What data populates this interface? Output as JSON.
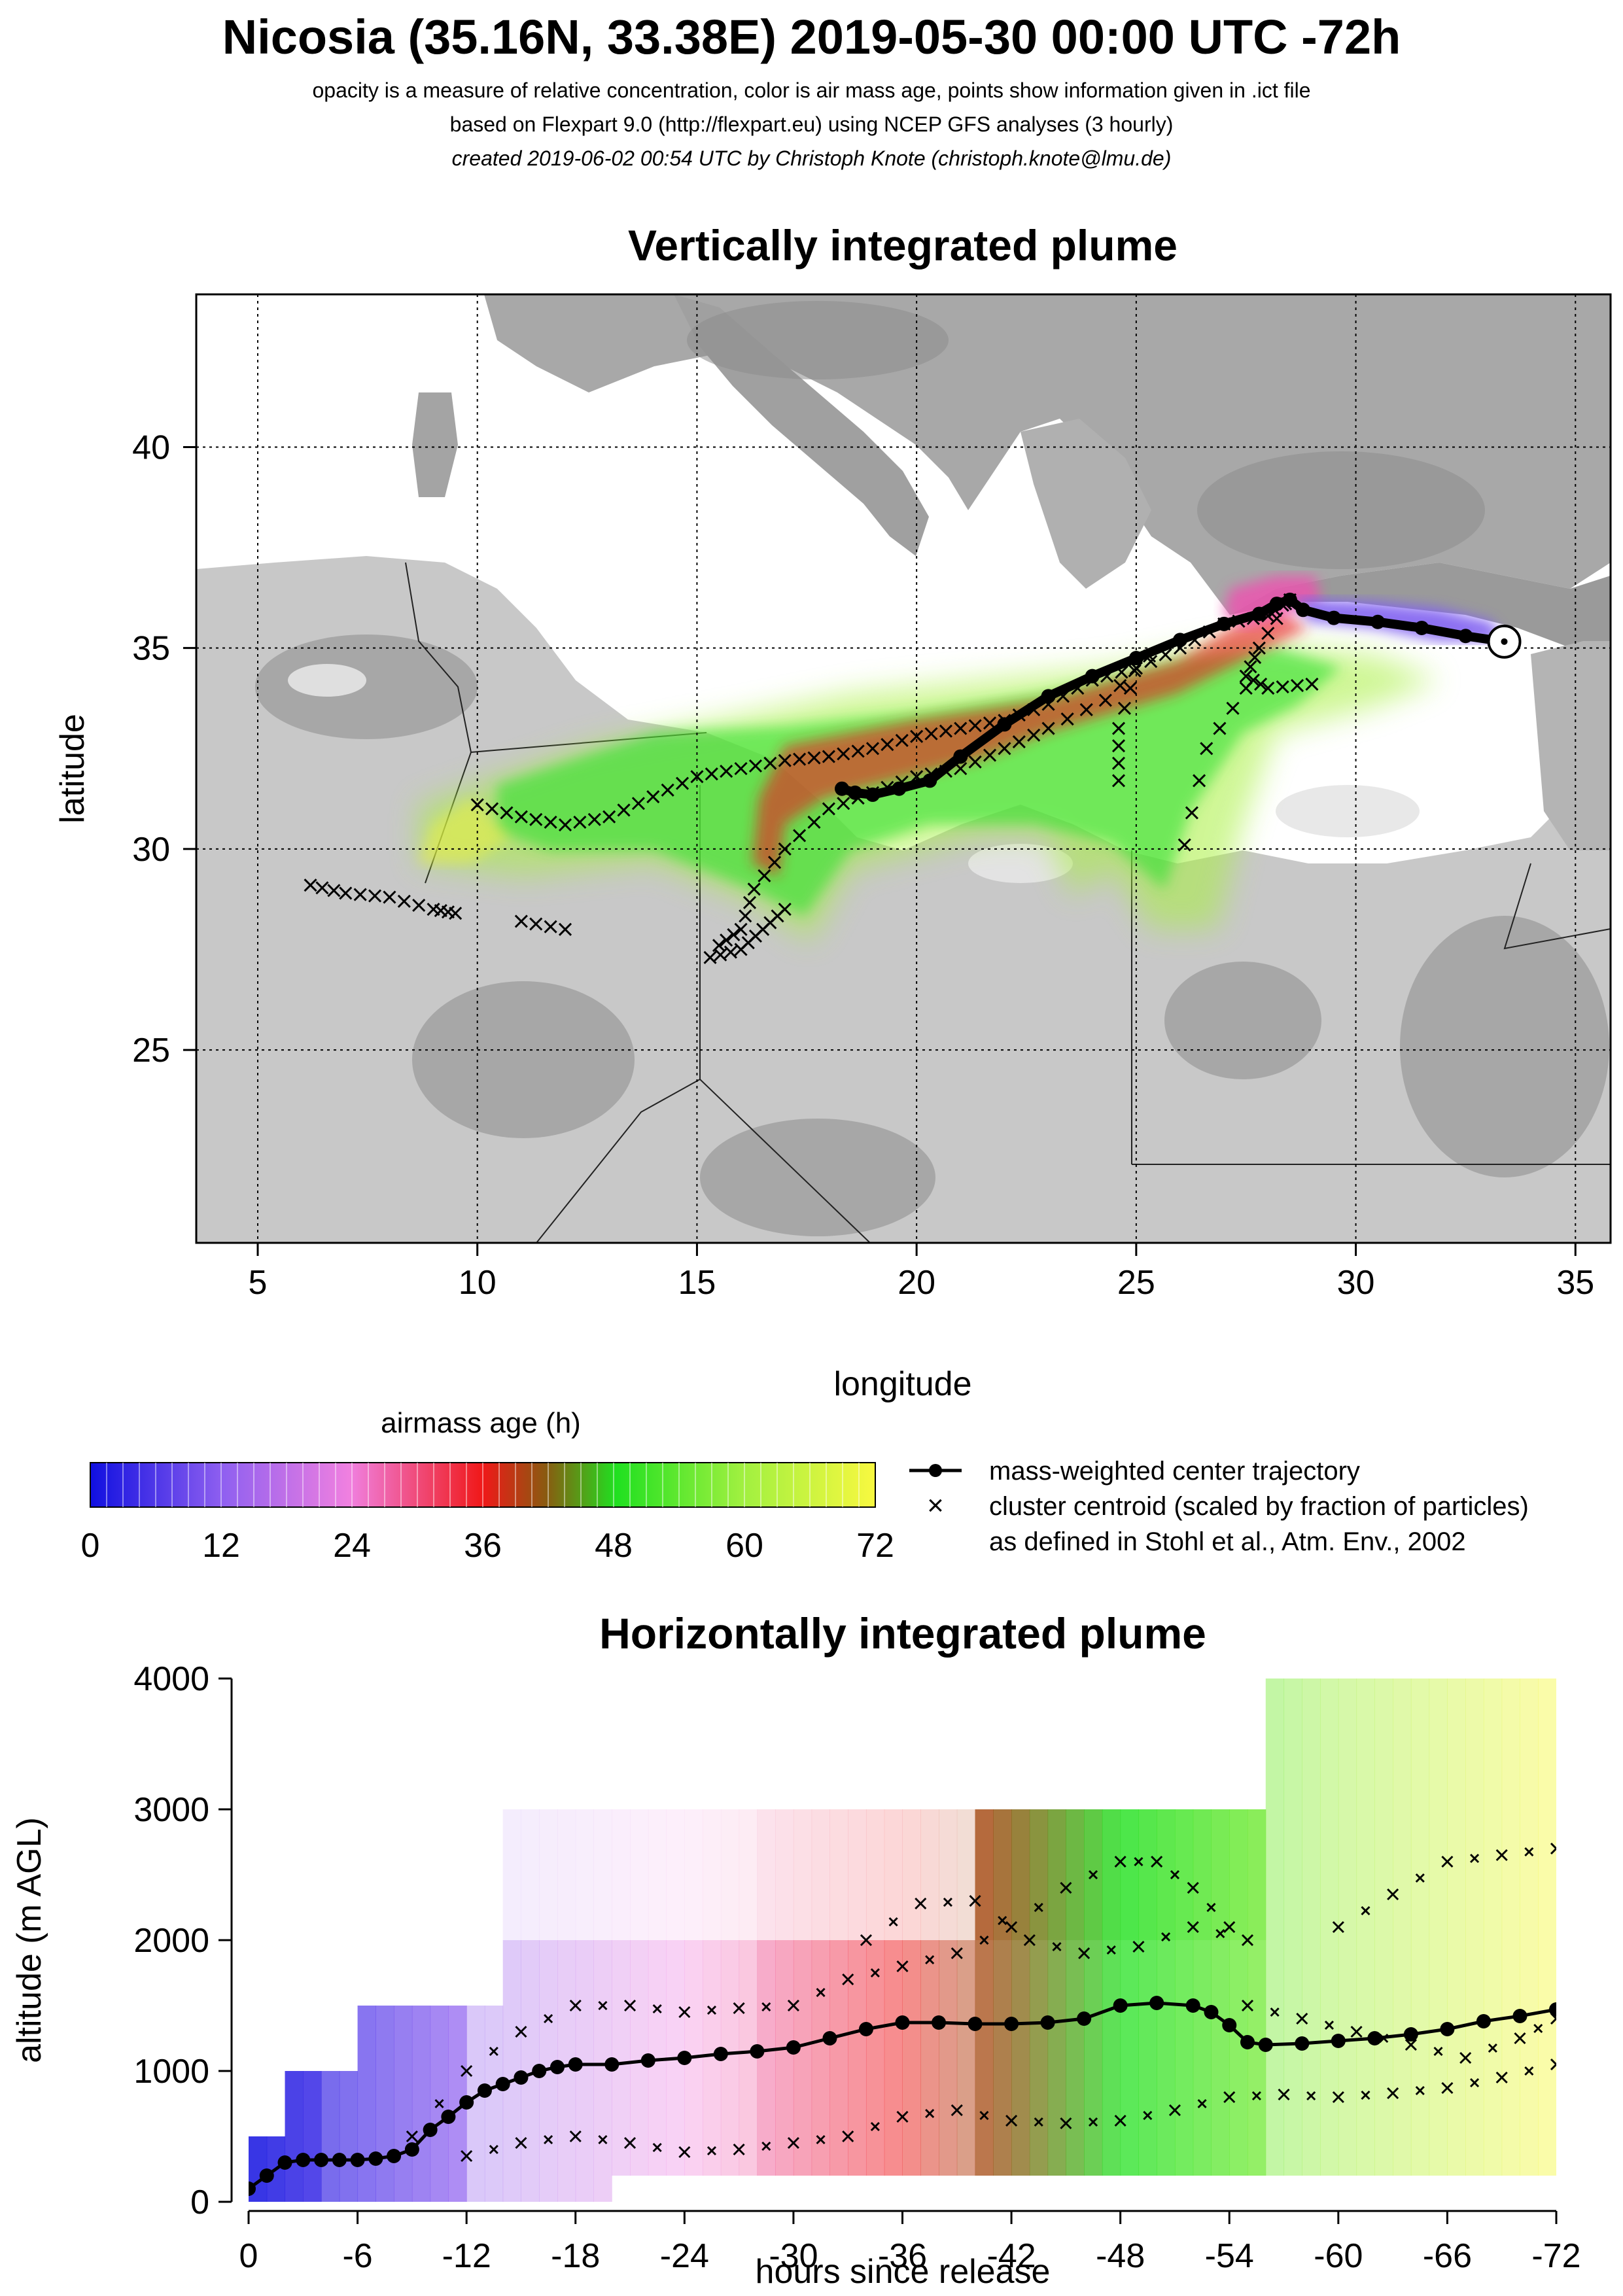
{
  "header": {
    "title": "Nicosia (35.16N, 33.38E) 2019-05-30 00:00 UTC -72h",
    "line1": "opacity is a measure of relative concentration, color is air mass age, points show information given in .ict file",
    "line2": "based on Flexpart 9.0 (http://flexpart.eu) using NCEP GFS analyses (3 hourly)",
    "line3": "created 2019-06-02 00:54 UTC by Christoph Knote (christoph.knote@lmu.de)"
  },
  "legend": {
    "colorbar_title": "airmass age (h)",
    "colorbar_ticks": [
      "0",
      "12",
      "24",
      "36",
      "48",
      "60",
      "72"
    ],
    "center_trajectory": "mass-weighted center trajectory",
    "cluster_centroid": "cluster centroid (scaled by fraction of particles)",
    "cluster_ref": "as defined in Stohl et al., Atm. Env., 2002"
  },
  "colors": {
    "age_0": "#1010e0",
    "age_12": "#9060f0",
    "age_24": "#f080e0",
    "age_36": "#f01818",
    "age_42": "#8a5a10",
    "age_48": "#20e020",
    "age_60": "#a0f040",
    "age_72": "#f8f840",
    "trajectory": "#000000"
  },
  "chart_data": [
    {
      "type": "map",
      "title": "Vertically integrated plume",
      "xlabel": "longitude",
      "ylabel": "latitude",
      "xlim": [
        3.6,
        35.8
      ],
      "ylim": [
        20.2,
        43.8
      ],
      "x_ticks": [
        5,
        10,
        15,
        20,
        25,
        30,
        35
      ],
      "y_ticks": [
        25,
        30,
        35,
        40
      ],
      "grid": true,
      "release_point": {
        "lon": 33.38,
        "lat": 35.16
      },
      "center_trajectory": [
        [
          33.38,
          35.16
        ],
        [
          32.5,
          35.3
        ],
        [
          31.5,
          35.5
        ],
        [
          30.5,
          35.65
        ],
        [
          29.5,
          35.75
        ],
        [
          28.8,
          35.95
        ],
        [
          28.5,
          36.2
        ],
        [
          28.2,
          36.1
        ],
        [
          27.8,
          35.85
        ],
        [
          27.0,
          35.6
        ],
        [
          26.0,
          35.2
        ],
        [
          25.0,
          34.75
        ],
        [
          24.0,
          34.3
        ],
        [
          23.0,
          33.8
        ],
        [
          22.0,
          33.1
        ],
        [
          21.0,
          32.3
        ],
        [
          20.3,
          31.7
        ],
        [
          19.6,
          31.5
        ],
        [
          19.0,
          31.35
        ],
        [
          18.6,
          31.4
        ],
        [
          18.3,
          31.5
        ]
      ],
      "cluster_tracks": [
        [
          [
            28.5,
            36.2
          ],
          [
            28.0,
            35.8
          ],
          [
            27.0,
            35.6
          ],
          [
            26.0,
            35.0
          ],
          [
            25.0,
            34.5
          ],
          [
            24.0,
            34.2
          ],
          [
            23.0,
            33.6
          ],
          [
            22.0,
            33.2
          ],
          [
            21.0,
            33.0
          ],
          [
            20.0,
            32.8
          ],
          [
            19.0,
            32.5
          ],
          [
            18.0,
            32.3
          ],
          [
            17.0,
            32.2
          ],
          [
            16.0,
            32.0
          ],
          [
            15.0,
            31.8
          ],
          [
            14.0,
            31.3
          ],
          [
            13.0,
            30.8
          ],
          [
            12.0,
            30.6
          ],
          [
            11.0,
            30.8
          ],
          [
            10.0,
            31.1
          ]
        ],
        [
          [
            27.5,
            34.0
          ],
          [
            26.6,
            32.5
          ],
          [
            26.1,
            30.1
          ]
        ],
        [
          [
            25.3,
            34.8
          ],
          [
            24.3,
            33.7
          ],
          [
            23.0,
            33.0
          ],
          [
            22.0,
            32.5
          ],
          [
            21.0,
            32.0
          ],
          [
            20.0,
            31.8
          ],
          [
            19.0,
            31.4
          ],
          [
            18.0,
            31.0
          ],
          [
            17.0,
            30.0
          ],
          [
            16.3,
            29.0
          ],
          [
            16.0,
            28.0
          ],
          [
            15.5,
            27.6
          ]
        ],
        [
          [
            25.0,
            34.5
          ],
          [
            24.6,
            33.0
          ],
          [
            24.6,
            31.7
          ]
        ],
        [
          [
            28.4,
            36.1
          ],
          [
            27.8,
            35.0
          ],
          [
            27.5,
            34.3
          ],
          [
            28.0,
            34.0
          ],
          [
            29.0,
            34.1
          ]
        ],
        [
          [
            6.2,
            29.1
          ],
          [
            7.0,
            28.9
          ],
          [
            8.0,
            28.8
          ],
          [
            9.0,
            28.5
          ],
          [
            9.5,
            28.4
          ]
        ],
        [
          [
            11.0,
            28.2
          ],
          [
            12.0,
            28.0
          ]
        ],
        [
          [
            17.0,
            28.5
          ],
          [
            16.5,
            28.0
          ],
          [
            16.0,
            27.5
          ],
          [
            15.3,
            27.3
          ]
        ]
      ]
    },
    {
      "type": "area",
      "title": "Horizontally integrated plume",
      "xlabel": "hours since release",
      "ylabel": "altitude (m AGL)",
      "xlim": [
        0,
        -72
      ],
      "ylim": [
        0,
        4000
      ],
      "x_ticks": [
        "0",
        "-6",
        "-12",
        "-18",
        "-24",
        "-30",
        "-36",
        "-42",
        "-48",
        "-54",
        "-60",
        "-66",
        "-72"
      ],
      "y_ticks": [
        "0",
        "1000",
        "2000",
        "3000",
        "4000"
      ],
      "center_trajectory": {
        "hours": [
          0,
          -1,
          -2,
          -3,
          -4,
          -5,
          -6,
          -7,
          -8,
          -9,
          -10,
          -11,
          -12,
          -13,
          -14,
          -15,
          -16,
          -17,
          -18,
          -20,
          -22,
          -24,
          -26,
          -28,
          -30,
          -32,
          -34,
          -36,
          -38,
          -40,
          -42,
          -44,
          -46,
          -48,
          -50,
          -52,
          -53,
          -54,
          -55,
          -56,
          -58,
          -60,
          -62,
          -64,
          -66,
          -68,
          -70,
          -72
        ],
        "altitude": [
          100,
          200,
          300,
          320,
          320,
          320,
          320,
          330,
          350,
          400,
          550,
          650,
          760,
          850,
          900,
          950,
          1000,
          1030,
          1050,
          1050,
          1080,
          1100,
          1130,
          1150,
          1180,
          1250,
          1320,
          1370,
          1370,
          1360,
          1360,
          1370,
          1400,
          1500,
          1520,
          1500,
          1450,
          1350,
          1220,
          1200,
          1210,
          1230,
          1250,
          1280,
          1320,
          1380,
          1420,
          1470
        ]
      },
      "cluster_tracks": [
        {
          "hours": [
            -9,
            -12,
            -15,
            -18,
            -21,
            -24,
            -27,
            -30,
            -33,
            -36,
            -39,
            -42,
            -45,
            -48,
            -50,
            -52,
            -54
          ],
          "altitude": [
            500,
            1000,
            1300,
            1500,
            1500,
            1450,
            1480,
            1500,
            1700,
            1800,
            1900,
            2100,
            2400,
            2600,
            2600,
            2400,
            2100
          ]
        },
        {
          "hours": [
            -12,
            -15,
            -18,
            -21,
            -24,
            -27,
            -30,
            -33,
            -36,
            -39,
            -42,
            -45,
            -48,
            -51,
            -54,
            -57,
            -60,
            -63,
            -66,
            -69,
            -72
          ],
          "altitude": [
            350,
            450,
            500,
            450,
            380,
            400,
            450,
            500,
            650,
            700,
            620,
            600,
            620,
            700,
            800,
            820,
            800,
            830,
            870,
            950,
            1050
          ]
        },
        {
          "hours": [
            -55,
            -58,
            -61,
            -64,
            -67,
            -70,
            -72
          ],
          "altitude": [
            1500,
            1400,
            1300,
            1200,
            1100,
            1250,
            1400
          ]
        },
        {
          "hours": [
            -34,
            -37,
            -40,
            -43,
            -46,
            -49,
            -52,
            -55
          ],
          "altitude": [
            2000,
            2280,
            2300,
            2000,
            1900,
            1950,
            2100,
            2000
          ]
        },
        {
          "hours": [
            -60,
            -63,
            -66,
            -69,
            -72
          ],
          "altitude": [
            2100,
            2350,
            2600,
            2650,
            2700
          ]
        }
      ]
    }
  ]
}
